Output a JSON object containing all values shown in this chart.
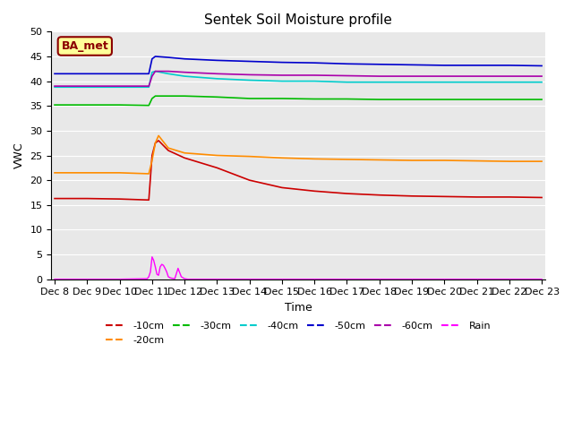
{
  "title": "Sentek Soil Moisture profile",
  "xlabel": "Time",
  "ylabel": "VWC",
  "ylim": [
    0,
    50
  ],
  "yticks": [
    0,
    5,
    10,
    15,
    20,
    25,
    30,
    35,
    40,
    45,
    50
  ],
  "xtick_labels": [
    "Dec 8",
    "Dec 9",
    "Dec 10",
    "Dec 11",
    "Dec 12",
    "Dec 13",
    "Dec 14",
    "Dec 15",
    "Dec 16",
    "Dec 17",
    "Dec 18",
    "Dec 19",
    "Dec 20",
    "Dec 21",
    "Dec 22",
    "Dec 23"
  ],
  "legend_label": "BA_met",
  "bg_color": "#e8e8e8",
  "line_colors": {
    "-10cm": "#cc0000",
    "-20cm": "#ff8c00",
    "-30cm": "#00bb00",
    "-40cm": "#00cccc",
    "-50cm": "#0000cc",
    "-60cm": "#aa00aa",
    "Rain": "#ff00ff"
  },
  "series": {
    "-10cm": {
      "x": [
        0,
        1,
        2,
        2.9,
        3.0,
        3.1,
        3.2,
        3.5,
        4,
        5,
        6,
        7,
        8,
        9,
        10,
        11,
        12,
        13,
        14,
        15
      ],
      "y": [
        16.3,
        16.3,
        16.2,
        16.0,
        25.0,
        27.5,
        28.0,
        26.0,
        24.5,
        22.5,
        20.0,
        18.5,
        17.8,
        17.3,
        17.0,
        16.8,
        16.7,
        16.6,
        16.6,
        16.5
      ]
    },
    "-20cm": {
      "x": [
        0,
        1,
        2,
        2.9,
        3.0,
        3.1,
        3.2,
        3.5,
        4,
        5,
        6,
        7,
        8,
        9,
        10,
        11,
        12,
        13,
        14,
        15
      ],
      "y": [
        21.5,
        21.5,
        21.5,
        21.3,
        24.0,
        27.5,
        29.0,
        26.5,
        25.5,
        25.0,
        24.8,
        24.5,
        24.3,
        24.2,
        24.1,
        24.0,
        24.0,
        23.9,
        23.8,
        23.8
      ]
    },
    "-30cm": {
      "x": [
        0,
        1,
        2,
        2.9,
        3.0,
        3.1,
        3.5,
        4,
        5,
        6,
        7,
        8,
        9,
        10,
        11,
        12,
        13,
        14,
        15
      ],
      "y": [
        35.2,
        35.2,
        35.2,
        35.1,
        36.5,
        37.0,
        37.0,
        37.0,
        36.8,
        36.5,
        36.5,
        36.4,
        36.4,
        36.3,
        36.3,
        36.3,
        36.3,
        36.3,
        36.3
      ]
    },
    "-40cm": {
      "x": [
        0,
        1,
        2,
        2.9,
        3.0,
        3.1,
        3.5,
        4,
        5,
        6,
        7,
        8,
        9,
        10,
        11,
        12,
        13,
        14,
        15
      ],
      "y": [
        38.8,
        38.8,
        38.8,
        38.8,
        41.8,
        42.0,
        41.5,
        41.0,
        40.5,
        40.2,
        40.0,
        40.0,
        39.8,
        39.8,
        39.8,
        39.8,
        39.8,
        39.8,
        39.8
      ]
    },
    "-50cm": {
      "x": [
        0,
        1,
        2,
        2.9,
        3.0,
        3.1,
        3.5,
        4,
        5,
        6,
        7,
        8,
        9,
        10,
        11,
        12,
        13,
        14,
        15
      ],
      "y": [
        41.5,
        41.5,
        41.5,
        41.5,
        44.5,
        45.0,
        44.8,
        44.5,
        44.2,
        44.0,
        43.8,
        43.7,
        43.5,
        43.4,
        43.3,
        43.2,
        43.2,
        43.2,
        43.1
      ]
    },
    "-60cm": {
      "x": [
        0,
        1,
        2,
        2.9,
        3.0,
        3.1,
        3.5,
        4,
        5,
        6,
        7,
        8,
        9,
        10,
        11,
        12,
        13,
        14,
        15
      ],
      "y": [
        39.0,
        39.0,
        39.0,
        39.0,
        41.0,
        42.0,
        42.0,
        41.8,
        41.5,
        41.3,
        41.2,
        41.2,
        41.1,
        41.0,
        41.0,
        41.0,
        41.0,
        41.0,
        41.0
      ]
    },
    "Rain": {
      "x": [
        0,
        1,
        2,
        2.85,
        2.9,
        2.95,
        3.0,
        3.05,
        3.1,
        3.15,
        3.2,
        3.25,
        3.3,
        3.35,
        3.4,
        3.45,
        3.5,
        3.55,
        3.6,
        3.7,
        3.8,
        3.9,
        4.0,
        4.1,
        4.5,
        5,
        6,
        7,
        8,
        9,
        10,
        11,
        12,
        13,
        14,
        15
      ],
      "y": [
        0,
        0,
        0,
        0.1,
        0.5,
        1.5,
        4.5,
        3.8,
        2.5,
        1.0,
        0.8,
        2.5,
        3.0,
        2.8,
        2.2,
        1.5,
        0.5,
        0.3,
        0.2,
        0.1,
        2.2,
        0.5,
        0.1,
        0,
        0,
        0,
        0,
        0,
        0,
        0,
        0,
        0,
        0,
        0,
        0,
        0
      ]
    }
  }
}
